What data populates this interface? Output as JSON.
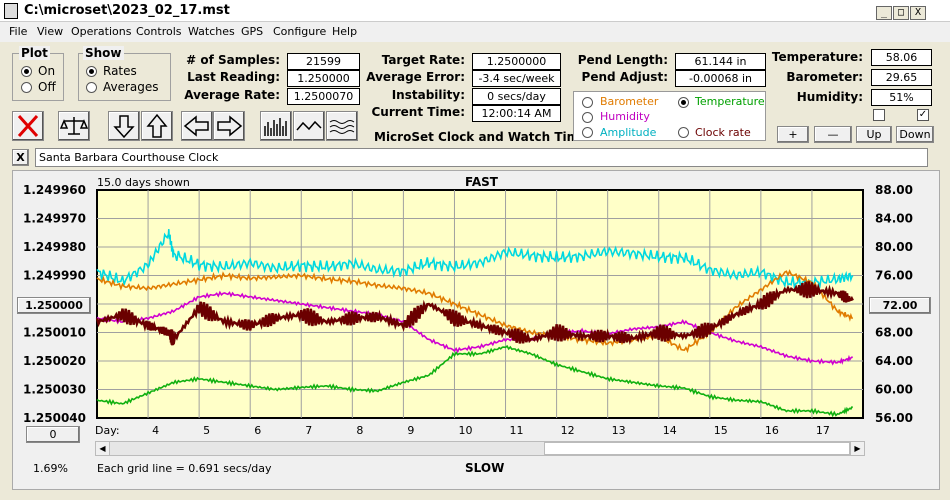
{
  "window": {
    "title": "C:\\microset\\2023_02_17.mst",
    "minimize": "_",
    "maximize": "□",
    "close": "X"
  },
  "menu": [
    "File",
    "View",
    "Operations",
    "Controls",
    "Watches",
    "GPS",
    "Configure",
    "Help"
  ],
  "plot": {
    "title": "Plot",
    "on": "On",
    "off": "Off",
    "selected": "On"
  },
  "show": {
    "title": "Show",
    "rates": "Rates",
    "averages": "Averages",
    "selected": "Rates"
  },
  "stats": {
    "samples_label": "# of Samples:",
    "samples": "21599",
    "last_label": "Last Reading:",
    "last": "1.250000",
    "avg_label": "Average Rate:",
    "avg": "1.2500070",
    "target_label": "Target Rate:",
    "target": "1.2500000",
    "error_label": "Average Error:",
    "error": "-3.4 sec/week",
    "instab_label": "Instability:",
    "instab": "0 secs/day",
    "time_label": "Current Time:",
    "time": "12:00:14 AM",
    "app_name": "MicroSet Clock and Watch Timer",
    "pend_len_label": "Pend Length:",
    "pend_len": "61.144 in",
    "pend_adj_label": "Pend Adjust:",
    "pend_adj": "-0.00068 in",
    "temp_label": "Temperature:",
    "temp": "58.06",
    "baro_label": "Barometer:",
    "baro": "29.65",
    "hum_label": "Humidity:",
    "hum": "51%"
  },
  "sensors": {
    "barometer": "Barometer",
    "temperature": "Temperature",
    "humidity": "Humidity",
    "amplitude": "Amplitude",
    "clockrate": "Clock rate",
    "selected": "Temperature",
    "colors": {
      "barometer": "#e07b00",
      "temperature": "#00a000",
      "humidity": "#c000c0",
      "amplitude": "#00b0c0",
      "clockrate": "#6b0000"
    }
  },
  "side_buttons": {
    "plus": "+",
    "minus": "—",
    "up": "Up",
    "down": "Down",
    "check2": "✓"
  },
  "toolbar_icons": [
    "cancel-icon",
    "balance-icon",
    "arrow-down-icon",
    "arrow-up-icon",
    "arrow-left-icon",
    "arrow-right-icon",
    "bar-chart-icon",
    "wave-icon",
    "noise-icon"
  ],
  "name_field": {
    "close": "X",
    "value": "Santa Barbara Courthouse Clock"
  },
  "chart": {
    "days_shown": "15.0 days shown",
    "top": "FAST",
    "bottom": "SLOW",
    "left_btn": "1.250000",
    "right_btn": "72.00",
    "zero_btn": "0",
    "pct": "1.69%",
    "grid_note": "Each grid line = 0.691 secs/day",
    "day_label": "Day:"
  },
  "chart_data": {
    "type": "line",
    "x_days": [
      "4",
      "5",
      "6",
      "7",
      "8",
      "9",
      "10",
      "11",
      "12",
      "13",
      "14",
      "15",
      "16",
      "17"
    ],
    "y_left_ticks": [
      "1.249960",
      "1.249970",
      "1.249980",
      "1.249990",
      "1.250000",
      "1.250010",
      "1.250020",
      "1.250030",
      "1.250040"
    ],
    "y_right_ticks": [
      "88.00",
      "84.00",
      "80.00",
      "76.00",
      "72.00",
      "68.00",
      "64.00",
      "60.00",
      "56.00"
    ],
    "xlim": [
      3.0,
      18.0
    ],
    "grid": true,
    "series": [
      {
        "name": "Amplitude",
        "color": "#00d8e0",
        "axis": "right",
        "x": [
          3.0,
          3.5,
          4.0,
          4.4,
          4.5,
          5.0,
          5.5,
          6.0,
          6.5,
          7.0,
          7.5,
          8.0,
          8.5,
          9.0,
          9.5,
          10.0,
          10.5,
          11.0,
          11.5,
          12.0,
          12.5,
          13.0,
          13.5,
          14.0,
          14.5,
          15.0,
          15.5,
          16.0,
          16.5,
          17.0,
          17.5,
          17.8
        ],
        "y": [
          76.5,
          75.2,
          77.5,
          82,
          79,
          77.5,
          77.2,
          77.8,
          77,
          77.4,
          77.2,
          77.7,
          76.8,
          76.6,
          77.8,
          77.2,
          77.8,
          79.3,
          78.8,
          78.5,
          78.7,
          79.4,
          79.1,
          78.6,
          78.5,
          76.8,
          76,
          76.5,
          75,
          75,
          75.5,
          76
        ]
      },
      {
        "name": "Barometer",
        "color": "#e07b00",
        "axis": "right",
        "x": [
          3.0,
          3.5,
          4.0,
          4.5,
          5.0,
          5.5,
          6.0,
          6.5,
          7.0,
          7.5,
          8.0,
          8.5,
          9.0,
          9.5,
          10.0,
          10.5,
          11.0,
          11.5,
          12.0,
          12.5,
          13.0,
          13.5,
          14.0,
          14.5,
          15.0,
          15.5,
          16.0,
          16.5,
          17.0,
          17.5,
          17.8
        ],
        "y": [
          75.5,
          74.5,
          74.2,
          74.8,
          75.4,
          76,
          75.6,
          75.8,
          76,
          75.5,
          75.2,
          74.6,
          74.2,
          73.5,
          72,
          70.5,
          69,
          68,
          67.5,
          67,
          66.5,
          67,
          67.5,
          65.5,
          68,
          71.5,
          74,
          76.5,
          75,
          71,
          70
        ]
      },
      {
        "name": "Humidity",
        "color": "#d000d0",
        "axis": "right",
        "x": [
          3.0,
          3.5,
          4.0,
          4.5,
          5.0,
          5.5,
          6.0,
          6.5,
          7.0,
          7.5,
          8.0,
          8.5,
          9.0,
          9.5,
          10.0,
          10.5,
          11.0,
          11.5,
          12.0,
          12.5,
          13.0,
          13.5,
          14.0,
          14.5,
          15.0,
          15.5,
          16.0,
          16.5,
          17.0,
          17.5,
          17.8
        ],
        "y": [
          70,
          69.5,
          70,
          71,
          73,
          73.5,
          73,
          72.5,
          72,
          71.5,
          71,
          70.5,
          69.5,
          67,
          65.5,
          66,
          67,
          67,
          68,
          68.2,
          67.8,
          68.5,
          68.8,
          69.5,
          68,
          66.8,
          66,
          64.7,
          64,
          63.8,
          64.5
        ]
      },
      {
        "name": "Temperature",
        "color": "#10b010",
        "axis": "right",
        "x": [
          3.0,
          3.5,
          4.0,
          4.5,
          5.0,
          5.5,
          6.0,
          6.5,
          7.0,
          7.5,
          8.0,
          8.5,
          9.0,
          9.5,
          10.0,
          10.5,
          11.0,
          11.5,
          12.0,
          12.5,
          13.0,
          13.5,
          14.0,
          14.5,
          15.0,
          15.5,
          16.0,
          16.5,
          17.0,
          17.5,
          17.8
        ],
        "y": [
          58.5,
          58,
          59.5,
          61,
          61.5,
          61,
          60.5,
          60,
          60.3,
          60.5,
          60,
          59.8,
          61,
          62,
          65,
          65,
          66,
          65,
          63.5,
          62.5,
          61.5,
          61,
          60.5,
          60.2,
          59,
          58.5,
          58.3,
          57,
          57,
          56.5,
          57.5
        ]
      },
      {
        "name": "Clock rate",
        "color": "#6b0000",
        "axis": "right",
        "x": [
          3.0,
          3.5,
          4.0,
          4.4,
          4.5,
          5.0,
          5.5,
          6.0,
          6.5,
          7.0,
          7.5,
          8.0,
          8.5,
          9.0,
          9.5,
          10.0,
          10.5,
          11.0,
          11.5,
          12.0,
          12.5,
          13.0,
          13.5,
          14.0,
          14.5,
          15.0,
          15.5,
          16.0,
          16.5,
          17.0,
          17.5,
          17.8
        ],
        "y": [
          69.5,
          70.5,
          69,
          68,
          67,
          71.5,
          69.5,
          69,
          70,
          70.5,
          69.5,
          70,
          70.2,
          69,
          72,
          70,
          69,
          68,
          67,
          68,
          67.5,
          67.5,
          67.2,
          68,
          67.5,
          68.5,
          70.5,
          72,
          74,
          74,
          73.5,
          72.5
        ]
      }
    ]
  }
}
